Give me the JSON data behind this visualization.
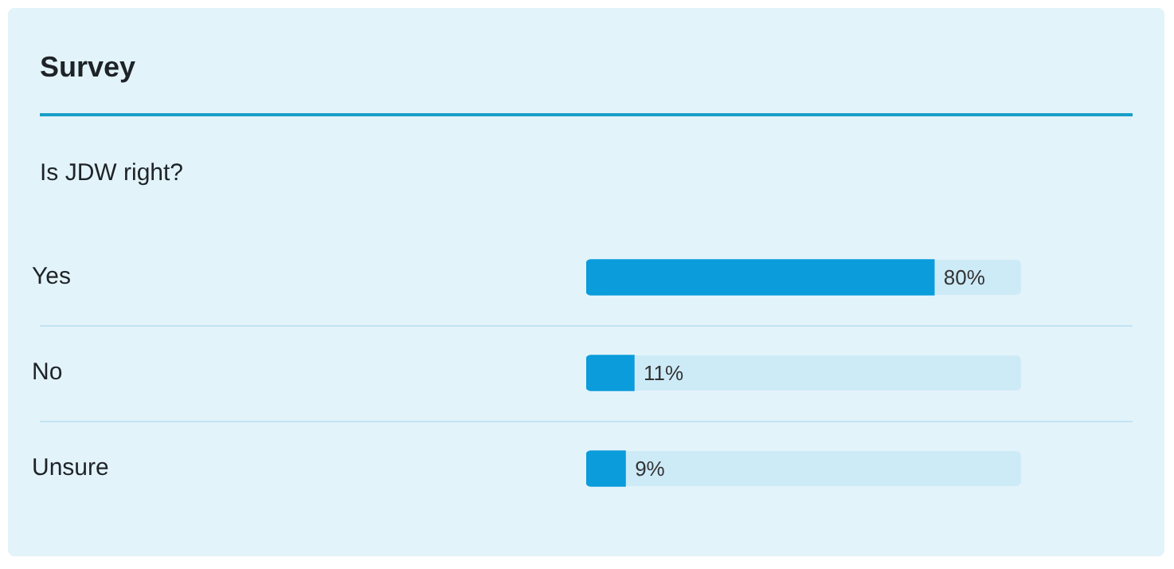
{
  "chart_data": {
    "type": "bar",
    "orientation": "horizontal",
    "title": "Survey",
    "subtitle": "Is JDW right?",
    "categories": [
      "Yes",
      "No",
      "Unsure"
    ],
    "values": [
      80,
      11,
      9
    ],
    "value_labels": [
      "80%",
      "11%",
      "9%"
    ],
    "color": "#0a9cdb",
    "xlim": [
      0,
      100
    ],
    "tick_labels": "y",
    "grid": false,
    "legend": false
  }
}
